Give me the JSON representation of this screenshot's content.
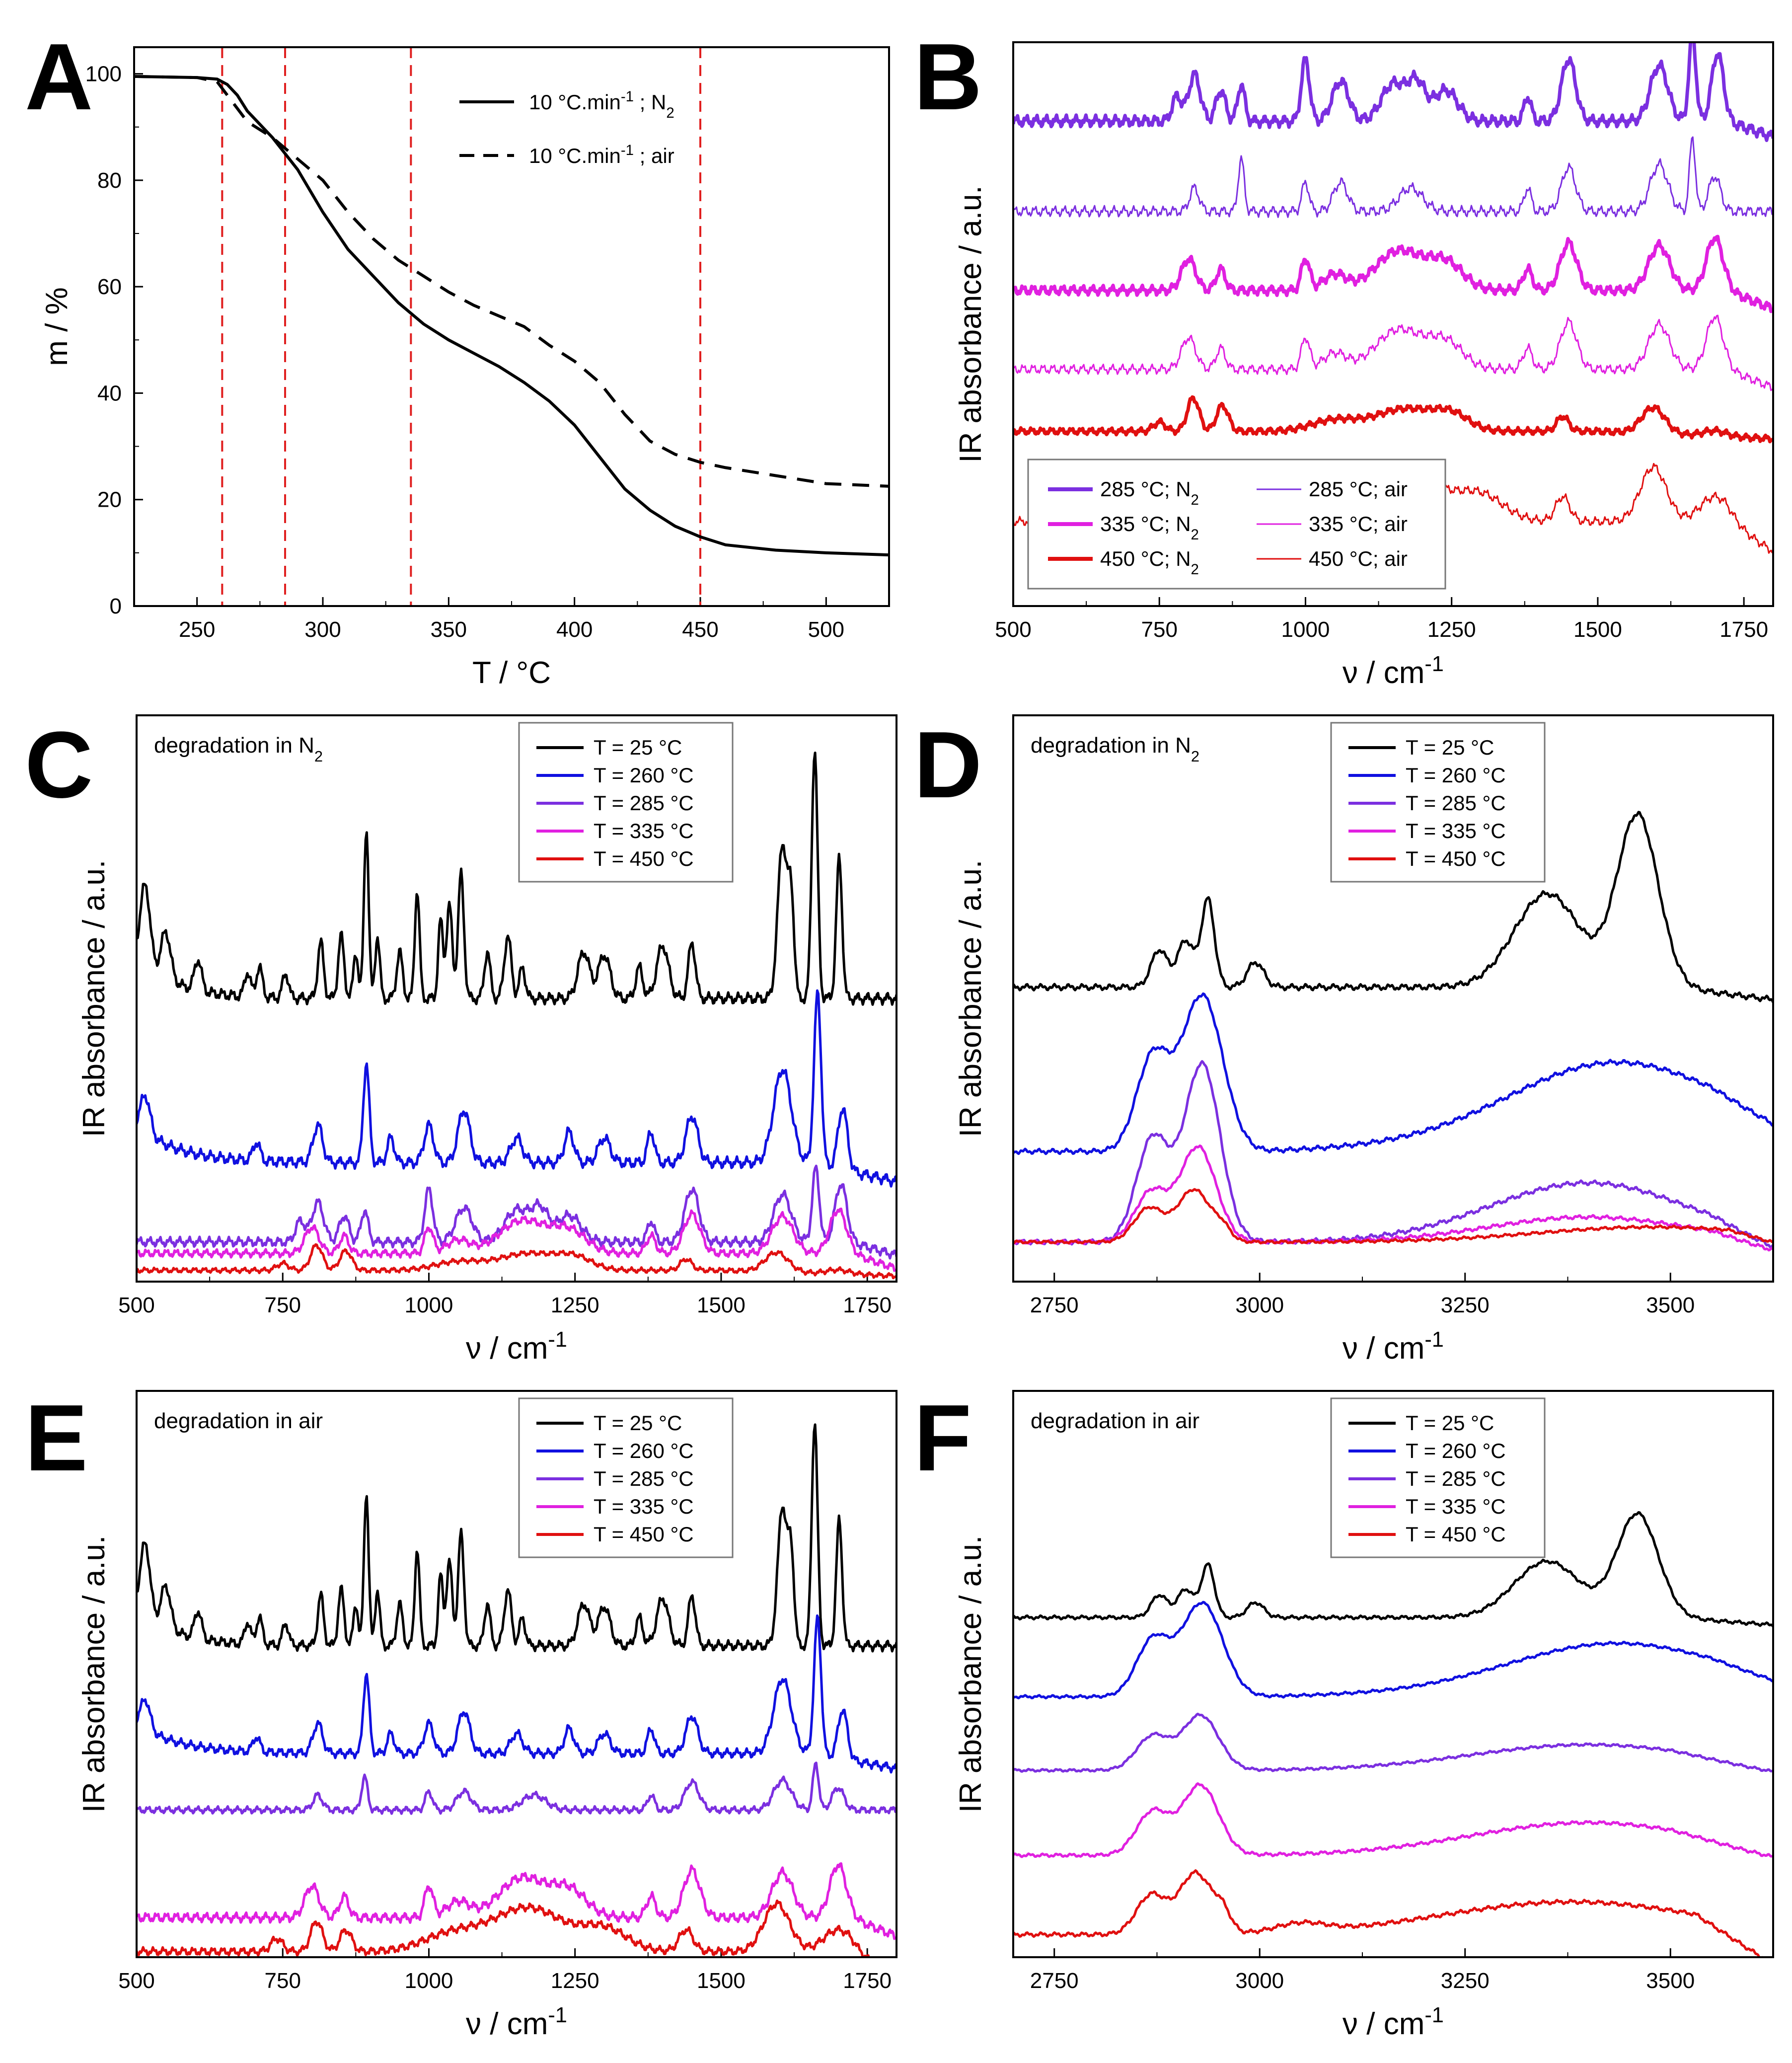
{
  "figure": {
    "background": "#ffffff"
  },
  "chart_data": [
    {
      "panel": "A",
      "type": "line",
      "xlabel": "T   /   °C",
      "ylabel": "m   /   %",
      "xlim": [
        225,
        525
      ],
      "ylim": [
        0,
        105
      ],
      "xticks": [
        250,
        300,
        350,
        400,
        450,
        500
      ],
      "yticks": [
        0,
        20,
        40,
        60,
        80,
        100
      ],
      "vlines": [
        260,
        285,
        335,
        450
      ],
      "vline_color": "#e02020",
      "legend": {
        "position": "top-right",
        "boxed": false
      },
      "series": [
        {
          "name": "10 °C.min",
          "sup": "-1",
          "suffix": " ; N",
          "sub": "2",
          "color": "#000000",
          "dash": "solid",
          "width": 6,
          "points": [
            [
              225,
              99.5
            ],
            [
              250,
              99.3
            ],
            [
              258,
              99
            ],
            [
              262,
              98
            ],
            [
              266,
              96
            ],
            [
              270,
              93
            ],
            [
              280,
              88
            ],
            [
              290,
              82
            ],
            [
              300,
              74
            ],
            [
              310,
              67
            ],
            [
              320,
              62
            ],
            [
              330,
              57
            ],
            [
              340,
              53
            ],
            [
              350,
              50
            ],
            [
              360,
              47.5
            ],
            [
              370,
              45
            ],
            [
              380,
              42
            ],
            [
              390,
              38.5
            ],
            [
              400,
              34
            ],
            [
              410,
              28
            ],
            [
              420,
              22
            ],
            [
              430,
              18
            ],
            [
              440,
              15
            ],
            [
              450,
              13
            ],
            [
              460,
              11.5
            ],
            [
              480,
              10.5
            ],
            [
              500,
              10
            ],
            [
              525,
              9.6
            ]
          ]
        },
        {
          "name": "10 °C.min",
          "sup": "-1",
          "suffix": " ; air",
          "sub": "",
          "color": "#000000",
          "dash": "dashed",
          "width": 6,
          "points": [
            [
              225,
              99.5
            ],
            [
              250,
              99.3
            ],
            [
              258,
              98.5
            ],
            [
              262,
              96
            ],
            [
              270,
              91
            ],
            [
              280,
              88
            ],
            [
              290,
              84
            ],
            [
              300,
              80
            ],
            [
              310,
              74
            ],
            [
              320,
              69
            ],
            [
              330,
              65
            ],
            [
              340,
              62
            ],
            [
              350,
              59
            ],
            [
              360,
              56.5
            ],
            [
              370,
              54.5
            ],
            [
              380,
              52.5
            ],
            [
              390,
              49
            ],
            [
              400,
              46
            ],
            [
              410,
              42
            ],
            [
              420,
              36
            ],
            [
              430,
              31
            ],
            [
              440,
              28.5
            ],
            [
              450,
              27
            ],
            [
              460,
              26
            ],
            [
              480,
              24.5
            ],
            [
              500,
              23
            ],
            [
              525,
              22.5
            ]
          ]
        }
      ]
    },
    {
      "panel": "B",
      "type": "line",
      "xlabel": "ν   /   cm",
      "xlabel_sup": "-1",
      "ylabel": "IR absorbance   /   a.u.",
      "xlim": [
        500,
        1800
      ],
      "xticks": [
        500,
        750,
        1000,
        1250,
        1500,
        1750
      ],
      "legend": {
        "position": "bottom-left",
        "items": [
          {
            "label": "285 °C; N",
            "sub": "2",
            "color": "#7b2fe0",
            "width": 8
          },
          {
            "label": "285 °C; air",
            "sub": "",
            "color": "#7b2fe0",
            "width": 3
          },
          {
            "label": "335 °C; N",
            "sub": "2",
            "color": "#e020e0",
            "width": 8
          },
          {
            "label": "335 °C; air",
            "sub": "",
            "color": "#e020e0",
            "width": 3
          },
          {
            "label": "450 °C; N",
            "sub": "2",
            "color": "#e01010",
            "width": 8
          },
          {
            "label": "450 °C; air",
            "sub": "",
            "color": "#e01010",
            "width": 3
          }
        ]
      },
      "series": [
        {
          "name": "285 °C; N2",
          "color": "#7b2fe0",
          "width": 7,
          "offset": 0.86,
          "scale": 1.0,
          "spectrum": "mid_hi"
        },
        {
          "name": "285 °C; air",
          "color": "#7b2fe0",
          "width": 3,
          "offset": 0.7,
          "scale": 0.95,
          "spectrum": "mid_air"
        },
        {
          "name": "335 °C; N2",
          "color": "#e020e0",
          "width": 7,
          "offset": 0.56,
          "scale": 0.85,
          "spectrum": "mid_335"
        },
        {
          "name": "335 °C; air",
          "color": "#e020e0",
          "width": 3,
          "offset": 0.42,
          "scale": 0.85,
          "spectrum": "mid_335"
        },
        {
          "name": "450 °C; N2",
          "color": "#e01010",
          "width": 7,
          "offset": 0.31,
          "scale": 0.6,
          "spectrum": "mid_450"
        },
        {
          "name": "450 °C; air",
          "color": "#e01010",
          "width": 3,
          "offset": 0.15,
          "scale": 0.8,
          "spectrum": "mid_450air"
        }
      ]
    },
    {
      "panel": "C",
      "type": "line",
      "annotation": "degradation in N",
      "annotation_sub": "2",
      "xlabel": "ν   /   cm",
      "xlabel_sup": "-1",
      "ylabel": "IR absorbance   /   a.u.",
      "xlim": [
        500,
        1800
      ],
      "xticks": [
        500,
        750,
        1000,
        1250,
        1500,
        1750
      ],
      "legend": {
        "position": "top-right",
        "items": [
          {
            "label": "T =   25 °C",
            "color": "#000000"
          },
          {
            "label": "T = 260 °C",
            "color": "#1010e0"
          },
          {
            "label": "T = 285 °C",
            "color": "#7b2fe0"
          },
          {
            "label": "T = 335 °C",
            "color": "#e020e0"
          },
          {
            "label": "T = 450 °C",
            "color": "#e01010"
          }
        ]
      },
      "series": [
        {
          "name": "T = 25 °C",
          "color": "#000000",
          "width": 5,
          "offset": 0.5,
          "scale": 1.0,
          "spectrum": "mid_25"
        },
        {
          "name": "T = 260 °C",
          "color": "#1010e0",
          "width": 5,
          "offset": 0.21,
          "scale": 1.0,
          "spectrum": "mid_260"
        },
        {
          "name": "T = 285 °C",
          "color": "#7b2fe0",
          "width": 5,
          "offset": 0.07,
          "scale": 0.85,
          "spectrum": "mid_hi"
        },
        {
          "name": "T = 335 °C",
          "color": "#e020e0",
          "width": 5,
          "offset": 0.05,
          "scale": 0.7,
          "spectrum": "mid_335"
        },
        {
          "name": "T = 450 °C",
          "color": "#e01010",
          "width": 5,
          "offset": 0.02,
          "scale": 0.45,
          "spectrum": "mid_450"
        }
      ]
    },
    {
      "panel": "D",
      "type": "line",
      "annotation": "degradation in N",
      "annotation_sub": "2",
      "xlabel": "ν   /   cm",
      "xlabel_sup": "-1",
      "ylabel": "IR absorbance   /   a.u.",
      "xlim": [
        2700,
        3625
      ],
      "xticks": [
        2750,
        3000,
        3250,
        3500
      ],
      "legend": {
        "position": "top-right",
        "items": [
          {
            "label": "T =   25 °C",
            "color": "#000000"
          },
          {
            "label": "T = 260 °C",
            "color": "#1010e0"
          },
          {
            "label": "T = 285 °C",
            "color": "#7b2fe0"
          },
          {
            "label": "T = 335 °C",
            "color": "#e020e0"
          },
          {
            "label": "T = 450 °C",
            "color": "#e01010"
          }
        ]
      },
      "series": [
        {
          "name": "T = 25 °C",
          "color": "#000000",
          "width": 5,
          "offset": 0.52,
          "scale": 1.0,
          "spectrum": "hi_25"
        },
        {
          "name": "T = 260 °C",
          "color": "#1010e0",
          "width": 5,
          "offset": 0.23,
          "scale": 1.0,
          "spectrum": "hi_260"
        },
        {
          "name": "T = 285 °C",
          "color": "#7b2fe0",
          "width": 5,
          "offset": 0.07,
          "scale": 0.95,
          "spectrum": "hi_285"
        },
        {
          "name": "T = 335 °C",
          "color": "#e020e0",
          "width": 5,
          "offset": 0.07,
          "scale": 0.8,
          "spectrum": "hi_335"
        },
        {
          "name": "T = 450 °C",
          "color": "#e01010",
          "width": 5,
          "offset": 0.07,
          "scale": 0.6,
          "spectrum": "hi_450"
        }
      ]
    },
    {
      "panel": "E",
      "type": "line",
      "annotation": "degradation in air",
      "annotation_sub": "",
      "xlabel": "ν   /   cm",
      "xlabel_sup": "-1",
      "ylabel": "IR absorbance   /   a.u.",
      "xlim": [
        500,
        1800
      ],
      "xticks": [
        500,
        750,
        1000,
        1250,
        1500,
        1750
      ],
      "legend": {
        "position": "top-right",
        "items": [
          {
            "label": "T =   25 °C",
            "color": "#000000"
          },
          {
            "label": "T = 260 °C",
            "color": "#1010e0"
          },
          {
            "label": "T = 285 °C",
            "color": "#7b2fe0"
          },
          {
            "label": "T = 335 °C",
            "color": "#e020e0"
          },
          {
            "label": "T = 450 °C",
            "color": "#e01010"
          }
        ]
      },
      "series": [
        {
          "name": "T = 25 °C",
          "color": "#000000",
          "width": 5,
          "offset": 0.55,
          "scale": 0.9,
          "spectrum": "mid_25"
        },
        {
          "name": "T = 260 °C",
          "color": "#1010e0",
          "width": 5,
          "offset": 0.36,
          "scale": 0.8,
          "spectrum": "mid_260"
        },
        {
          "name": "T = 285 °C",
          "color": "#7b2fe0",
          "width": 5,
          "offset": 0.26,
          "scale": 0.6,
          "spectrum": "mid_air"
        },
        {
          "name": "T = 335 °C",
          "color": "#e020e0",
          "width": 5,
          "offset": 0.07,
          "scale": 0.85,
          "spectrum": "mid_335"
        },
        {
          "name": "T = 450 °C",
          "color": "#e01010",
          "width": 5,
          "offset": 0.01,
          "scale": 0.7,
          "spectrum": "mid_450air"
        }
      ]
    },
    {
      "panel": "F",
      "type": "line",
      "annotation": "degradation in air",
      "annotation_sub": "",
      "xlabel": "ν   /   cm",
      "xlabel_sup": "-1",
      "ylabel": "IR absorbance   /   a.u.",
      "xlim": [
        2700,
        3625
      ],
      "xticks": [
        2750,
        3000,
        3250,
        3500
      ],
      "legend": {
        "position": "top-right",
        "items": [
          {
            "label": "T =   25 °C",
            "color": "#000000"
          },
          {
            "label": "T = 260 °C",
            "color": "#1010e0"
          },
          {
            "label": "T = 285 °C",
            "color": "#7b2fe0"
          },
          {
            "label": "T = 335 °C",
            "color": "#e020e0"
          },
          {
            "label": "T = 450 °C",
            "color": "#e01010"
          }
        ]
      },
      "series": [
        {
          "name": "T = 25 °C",
          "color": "#000000",
          "width": 5,
          "offset": 0.6,
          "scale": 0.6,
          "spectrum": "hi_25"
        },
        {
          "name": "T = 260 °C",
          "color": "#1010e0",
          "width": 5,
          "offset": 0.46,
          "scale": 0.6,
          "spectrum": "hi_260"
        },
        {
          "name": "T = 285 °C",
          "color": "#7b2fe0",
          "width": 5,
          "offset": 0.33,
          "scale": 0.55,
          "spectrum": "hi_285air"
        },
        {
          "name": "T = 335 °C",
          "color": "#e020e0",
          "width": 5,
          "offset": 0.18,
          "scale": 0.7,
          "spectrum": "hi_285air"
        },
        {
          "name": "T = 450 °C",
          "color": "#e01010",
          "width": 5,
          "offset": 0.04,
          "scale": 0.7,
          "spectrum": "hi_450air"
        }
      ]
    }
  ]
}
